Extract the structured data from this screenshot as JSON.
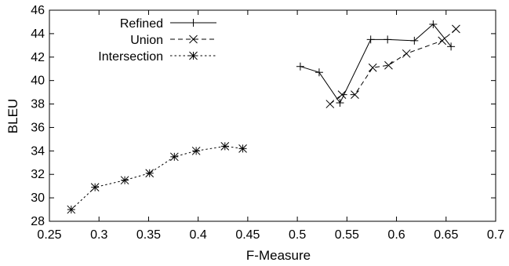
{
  "chart_data": {
    "type": "line",
    "title": "",
    "xlabel": "F-Measure",
    "ylabel": "BLEU",
    "xlim": [
      0.25,
      0.7
    ],
    "ylim": [
      28,
      46
    ],
    "xticks": [
      "0.25",
      "0.3",
      "0.35",
      "0.4",
      "0.45",
      "0.5",
      "0.55",
      "0.6",
      "0.65",
      "0.7"
    ],
    "yticks": [
      "28",
      "30",
      "32",
      "34",
      "36",
      "38",
      "40",
      "42",
      "44",
      "46"
    ],
    "grid": false,
    "legend_position": "top-left",
    "series": [
      {
        "name": "Refined",
        "marker": "plus",
        "line": "solid",
        "x": [
          0.503,
          0.522,
          0.543,
          0.574,
          0.591,
          0.618,
          0.637,
          0.655
        ],
        "y": [
          41.2,
          40.7,
          38.1,
          43.5,
          43.5,
          43.4,
          44.8,
          42.9
        ]
      },
      {
        "name": "Union",
        "marker": "cross",
        "line": "dashed",
        "x": [
          0.533,
          0.545,
          0.558,
          0.576,
          0.592,
          0.61,
          0.646,
          0.66
        ],
        "y": [
          38.0,
          38.8,
          38.8,
          41.1,
          41.3,
          42.3,
          43.4,
          44.4
        ]
      },
      {
        "name": "Intersection",
        "marker": "star",
        "line": "dotted",
        "x": [
          0.272,
          0.296,
          0.326,
          0.351,
          0.376,
          0.398,
          0.427,
          0.445
        ],
        "y": [
          29.0,
          30.9,
          31.5,
          32.1,
          33.5,
          34.0,
          34.4,
          34.2
        ]
      }
    ]
  }
}
